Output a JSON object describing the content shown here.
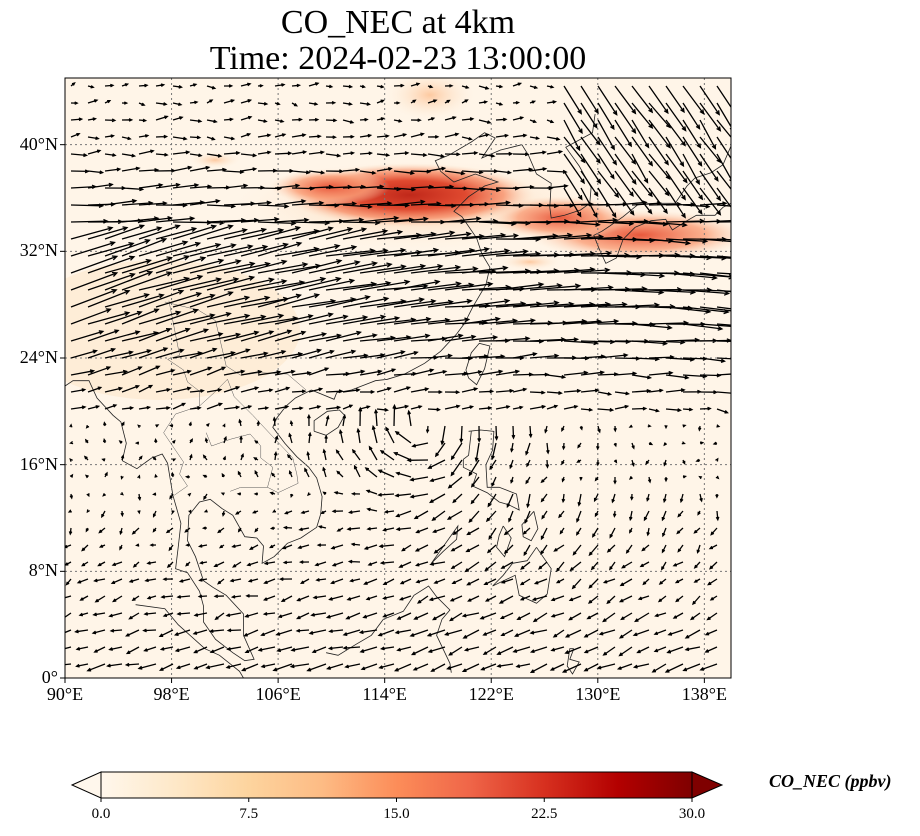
{
  "title": {
    "line1": "CO_NEC at 4km",
    "line2": "Time: 2024-02-23 13:00:00"
  },
  "map": {
    "projection": "PlateCarree",
    "lon_range": [
      90,
      140
    ],
    "lat_range": [
      0,
      45
    ],
    "gridlines": "dotted",
    "lat_ticks": [
      {
        "value": 0,
        "label": "0°"
      },
      {
        "value": 8,
        "label": "8°N"
      },
      {
        "value": 16,
        "label": "16°N"
      },
      {
        "value": 24,
        "label": "24°N"
      },
      {
        "value": 32,
        "label": "32°N"
      },
      {
        "value": 40,
        "label": "40°N"
      }
    ],
    "lon_ticks": [
      {
        "value": 90,
        "label": "90°E"
      },
      {
        "value": 98,
        "label": "98°E"
      },
      {
        "value": 106,
        "label": "106°E"
      },
      {
        "value": 114,
        "label": "114°E"
      },
      {
        "value": 122,
        "label": "122°E"
      },
      {
        "value": 130,
        "label": "130°E"
      },
      {
        "value": 138,
        "label": "138°E"
      }
    ],
    "field": "CO_NEC",
    "overlay": "wind vectors (quiver)",
    "plume_max_region": "eastern China 33-38°N"
  },
  "colorbar": {
    "label": "CO_NEC (ppbv)",
    "colormap": "OrRd",
    "colors": [
      "#fff7ec",
      "#fee8c8",
      "#fdd49e",
      "#fdbb84",
      "#fc8d59",
      "#ef6548",
      "#d7301f",
      "#b30000",
      "#7f0000"
    ],
    "min": 0.0,
    "max": 30.0,
    "extend": "both",
    "ticks": [
      "0.0",
      "7.5",
      "15.0",
      "22.5",
      "30.0"
    ]
  }
}
